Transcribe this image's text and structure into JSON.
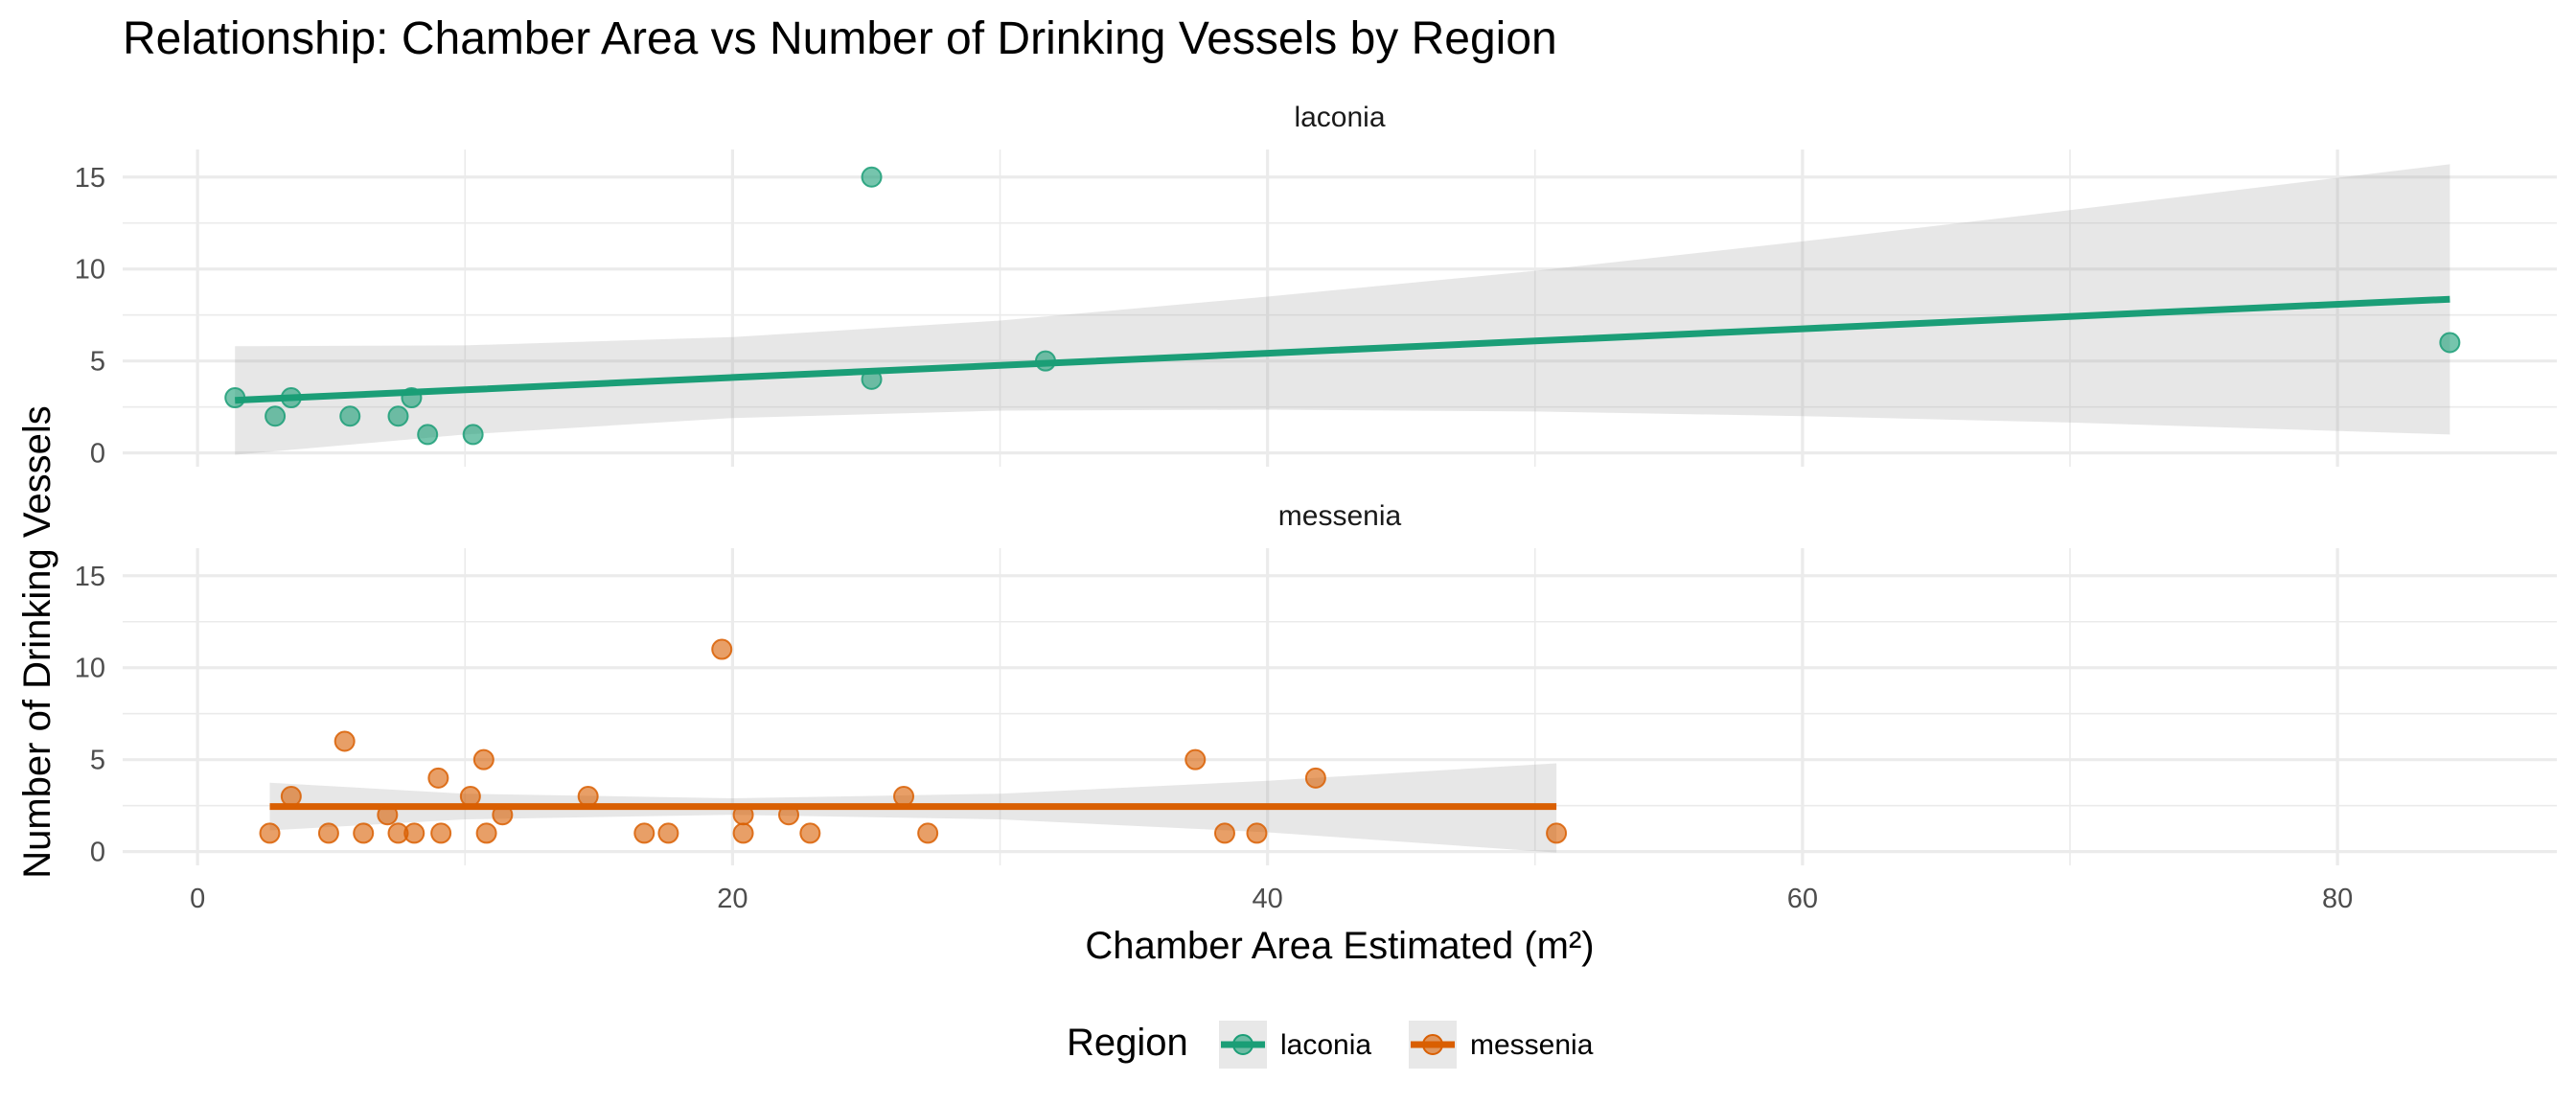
{
  "chart_data": {
    "type": "scatter",
    "title": "Relationship: Chamber Area vs Number of Drinking Vessels by Region",
    "xlabel": "Chamber Area Estimated (m²)",
    "ylabel": "Number of Drinking Vessels",
    "xlim": [
      -2.8,
      88.2
    ],
    "ylim": [
      -0.75,
      16.5
    ],
    "x_ticks": [
      0,
      20,
      40,
      60,
      80
    ],
    "y_ticks": [
      0,
      5,
      10,
      15
    ],
    "grid": true,
    "legend": {
      "title": "Region",
      "placement": "bottom",
      "entries": [
        "laconia",
        "messenia"
      ]
    },
    "colors": {
      "laconia": "#1b9e77",
      "messenia": "#d95f02",
      "ribbon": "#999999"
    },
    "panels": [
      {
        "name": "laconia",
        "points": [
          {
            "x": 1.4,
            "y": 3
          },
          {
            "x": 2.9,
            "y": 2
          },
          {
            "x": 3.5,
            "y": 3
          },
          {
            "x": 5.7,
            "y": 2
          },
          {
            "x": 7.5,
            "y": 2
          },
          {
            "x": 8.0,
            "y": 3
          },
          {
            "x": 8.6,
            "y": 1
          },
          {
            "x": 10.3,
            "y": 1
          },
          {
            "x": 25.2,
            "y": 15
          },
          {
            "x": 25.2,
            "y": 4
          },
          {
            "x": 31.7,
            "y": 5
          },
          {
            "x": 84.2,
            "y": 6
          }
        ],
        "fit": {
          "x": [
            1.4,
            10,
            20,
            30,
            40,
            50,
            60,
            70,
            84.2
          ],
          "y": [
            2.86,
            3.43,
            4.1,
            4.76,
            5.42,
            6.09,
            6.75,
            7.42,
            8.36
          ],
          "ymin": [
            -0.1,
            1.0,
            1.9,
            2.3,
            2.35,
            2.25,
            2.0,
            1.65,
            1.0
          ],
          "ymax": [
            5.8,
            5.85,
            6.3,
            7.2,
            8.5,
            9.9,
            11.5,
            13.2,
            15.7
          ]
        }
      },
      {
        "name": "messenia",
        "points": [
          {
            "x": 2.7,
            "y": 1
          },
          {
            "x": 3.5,
            "y": 3
          },
          {
            "x": 4.9,
            "y": 1
          },
          {
            "x": 5.5,
            "y": 6
          },
          {
            "x": 6.2,
            "y": 1
          },
          {
            "x": 7.1,
            "y": 2
          },
          {
            "x": 7.5,
            "y": 1
          },
          {
            "x": 8.1,
            "y": 1
          },
          {
            "x": 9.0,
            "y": 4
          },
          {
            "x": 9.1,
            "y": 1
          },
          {
            "x": 10.2,
            "y": 3
          },
          {
            "x": 10.7,
            "y": 5
          },
          {
            "x": 10.8,
            "y": 1
          },
          {
            "x": 11.4,
            "y": 2
          },
          {
            "x": 14.6,
            "y": 3
          },
          {
            "x": 16.7,
            "y": 1
          },
          {
            "x": 17.6,
            "y": 1
          },
          {
            "x": 19.6,
            "y": 11
          },
          {
            "x": 20.4,
            "y": 2
          },
          {
            "x": 20.4,
            "y": 1
          },
          {
            "x": 22.1,
            "y": 2
          },
          {
            "x": 22.9,
            "y": 1
          },
          {
            "x": 26.4,
            "y": 3
          },
          {
            "x": 27.3,
            "y": 1
          },
          {
            "x": 37.3,
            "y": 5
          },
          {
            "x": 38.4,
            "y": 1
          },
          {
            "x": 39.6,
            "y": 1
          },
          {
            "x": 41.8,
            "y": 4
          },
          {
            "x": 50.8,
            "y": 1
          }
        ],
        "fit": {
          "x": [
            2.7,
            10,
            20,
            30,
            40,
            50.8
          ],
          "y": [
            2.45,
            2.45,
            2.45,
            2.45,
            2.45,
            2.45
          ],
          "ymin": [
            1.15,
            1.75,
            2.0,
            1.75,
            1.05,
            -0.05
          ],
          "ymax": [
            3.75,
            3.15,
            2.9,
            3.15,
            3.85,
            4.8
          ]
        }
      }
    ]
  }
}
